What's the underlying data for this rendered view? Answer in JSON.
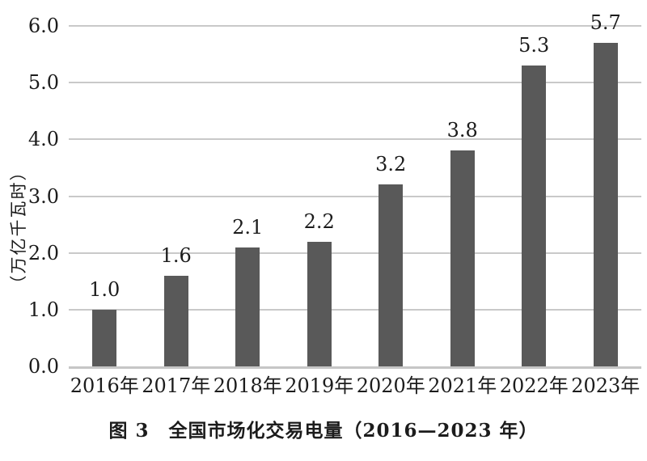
{
  "figure": {
    "caption": "图 3　全国市场化交易电量（2016—2023 年）"
  },
  "chart_data": {
    "type": "bar",
    "title": "图 3 全国市场化交易电量（2016—2023 年）",
    "categories": [
      "2016年",
      "2017年",
      "2018年",
      "2019年",
      "2020年",
      "2021年",
      "2022年",
      "2023年"
    ],
    "values": [
      1.0,
      1.6,
      2.1,
      2.2,
      3.2,
      3.8,
      5.3,
      5.7
    ],
    "bar_labels": [
      "1.0",
      "1.6",
      "2.1",
      "2.2",
      "3.2",
      "3.8",
      "5.3",
      "5.7"
    ],
    "xlabel": "",
    "ylabel": "（万亿千瓦时）",
    "ylim": [
      0,
      6
    ],
    "ytick_step": 1.0,
    "ytick_labels": [
      "0.0",
      "1.0",
      "2.0",
      "3.0",
      "4.0",
      "5.0",
      "6.0"
    ],
    "grid": "horizontal",
    "legend": "none",
    "colors": {
      "bar": "#595959",
      "gridline": "#c9c9c9",
      "axis_line": "#c6c6c6",
      "text": "#1c1c1c",
      "background": "#ffffff"
    }
  }
}
